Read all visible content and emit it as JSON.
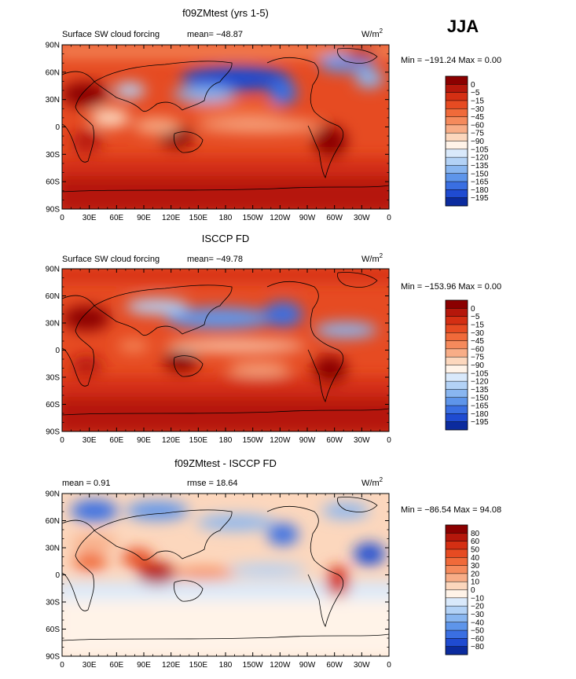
{
  "season": "JJA",
  "chart_data": [
    {
      "type": "heatmap",
      "title": "f09ZMtest (yrs 1-5)",
      "left_label": "Surface SW cloud forcing",
      "center_label": "mean=  −48.87",
      "right_label": "W/m",
      "right_label_sup": "2",
      "minmax": "Min = −191.24  Max =    0.00",
      "x_ticks": [
        "0",
        "30E",
        "60E",
        "90E",
        "120E",
        "150E",
        "180",
        "150W",
        "120W",
        "90W",
        "60W",
        "30W",
        "0"
      ],
      "y_ticks": [
        "90N",
        "60N",
        "30N",
        "0",
        "30S",
        "60S",
        "90S"
      ],
      "ylim": [
        -90,
        90
      ],
      "xlim": [
        0,
        360
      ],
      "colorbar": {
        "labels": [
          "0",
          "−5",
          "−15",
          "−30",
          "−45",
          "−60",
          "−75",
          "−90",
          "−105",
          "−120",
          "−135",
          "−150",
          "−165",
          "−180",
          "−195"
        ],
        "colors": [
          "#8b0000",
          "#b5170b",
          "#d42f13",
          "#e64b22",
          "#f06a3a",
          "#f58a5c",
          "#f8ad87",
          "#fcd7bd",
          "#fff3e8",
          "#d9e9fb",
          "#b3d2f6",
          "#89b6f0",
          "#5e95ea",
          "#3a6fe2",
          "#1f4bd1",
          "#0b2b9e"
        ]
      },
      "mean": -48.87,
      "min": -191.24,
      "max": 0.0
    },
    {
      "type": "heatmap",
      "title": "ISCCP FD",
      "left_label": "Surface SW cloud forcing",
      "center_label": "mean=  −49.78",
      "right_label": "W/m",
      "right_label_sup": "2",
      "minmax": "Min = −153.96  Max =    0.00",
      "x_ticks": [
        "0",
        "30E",
        "60E",
        "90E",
        "120E",
        "150E",
        "180",
        "150W",
        "120W",
        "90W",
        "60W",
        "30W",
        "0"
      ],
      "y_ticks": [
        "90N",
        "60N",
        "30N",
        "0",
        "30S",
        "60S",
        "90S"
      ],
      "ylim": [
        -90,
        90
      ],
      "xlim": [
        0,
        360
      ],
      "colorbar": {
        "labels": [
          "0",
          "−5",
          "−15",
          "−30",
          "−45",
          "−60",
          "−75",
          "−90",
          "−105",
          "−120",
          "−135",
          "−150",
          "−165",
          "−180",
          "−195"
        ],
        "colors": [
          "#8b0000",
          "#b5170b",
          "#d42f13",
          "#e64b22",
          "#f06a3a",
          "#f58a5c",
          "#f8ad87",
          "#fcd7bd",
          "#fff3e8",
          "#d9e9fb",
          "#b3d2f6",
          "#89b6f0",
          "#5e95ea",
          "#3a6fe2",
          "#1f4bd1",
          "#0b2b9e"
        ]
      },
      "mean": -49.78,
      "min": -153.96,
      "max": 0.0
    },
    {
      "type": "heatmap",
      "title": "f09ZMtest - ISCCP FD",
      "left_label": "mean =    0.91",
      "center_label": "rmse =  18.64",
      "right_label": "W/m",
      "right_label_sup": "2",
      "minmax": "Min = −86.54  Max =   94.08",
      "x_ticks": [
        "0",
        "30E",
        "60E",
        "90E",
        "120E",
        "150E",
        "180",
        "150W",
        "120W",
        "90W",
        "60W",
        "30W",
        "0"
      ],
      "y_ticks": [
        "90N",
        "60N",
        "30N",
        "0",
        "30S",
        "60S",
        "90S"
      ],
      "ylim": [
        -90,
        90
      ],
      "xlim": [
        0,
        360
      ],
      "colorbar": {
        "labels": [
          "80",
          "60",
          "50",
          "40",
          "30",
          "20",
          "10",
          "0",
          "−10",
          "−20",
          "−30",
          "−40",
          "−50",
          "−60",
          "−80"
        ],
        "colors": [
          "#8b0000",
          "#b5170b",
          "#d42f13",
          "#e64b22",
          "#f06a3a",
          "#f58a5c",
          "#f8ad87",
          "#fcd7bd",
          "#fff3e8",
          "#d9e9fb",
          "#b3d2f6",
          "#89b6f0",
          "#5e95ea",
          "#3a6fe2",
          "#1f4bd1",
          "#0b2b9e"
        ]
      },
      "mean": 0.91,
      "rmse": 18.64,
      "min": -86.54,
      "max": 94.08
    }
  ]
}
